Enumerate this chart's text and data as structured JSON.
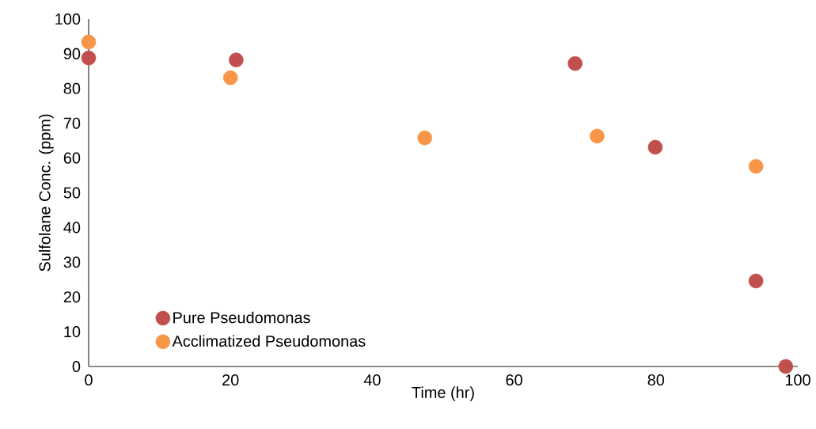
{
  "chart_data": {
    "type": "scatter",
    "xlabel": "Time (hr)",
    "ylabel": "Sulfolane Conc. (ppm)",
    "xlim": [
      0,
      100
    ],
    "ylim": [
      0,
      100
    ],
    "xticks": [
      0,
      20,
      40,
      60,
      80,
      100
    ],
    "yticks": [
      0,
      10,
      20,
      30,
      40,
      50,
      60,
      70,
      80,
      90,
      100
    ],
    "grid": false,
    "legend": "bottom left",
    "marker": "circle",
    "series": [
      {
        "name": "Pure Pseudomonas",
        "color": "#c0504d",
        "x": [
          0,
          20.8,
          68.6,
          79.9,
          94.1,
          98.3
        ],
        "values": [
          88.8,
          88.2,
          87.2,
          63.1,
          24.6,
          0
        ]
      },
      {
        "name": "Acclimatized Pseudomonas",
        "color": "#f79646",
        "x": [
          0,
          20.0,
          47.4,
          71.7,
          94.1
        ],
        "values": [
          93.4,
          83.1,
          65.8,
          66.3,
          57.6
        ]
      }
    ]
  }
}
